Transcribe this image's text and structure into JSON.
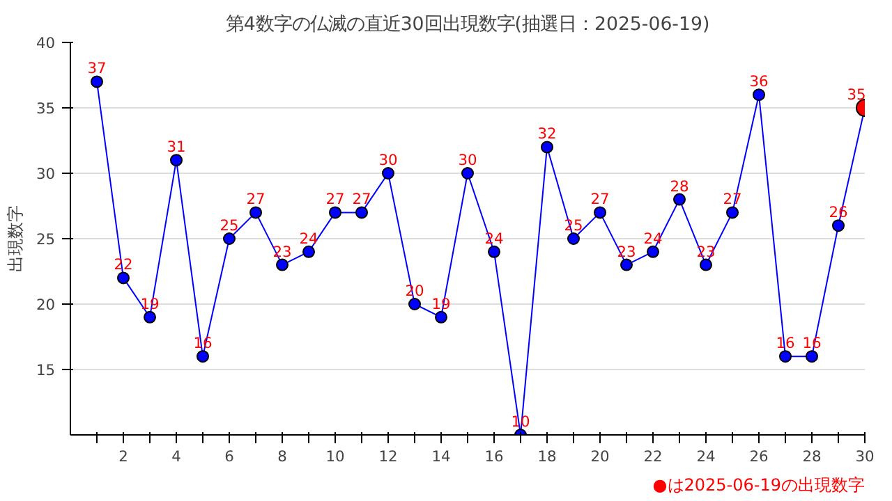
{
  "chart_data": {
    "type": "line",
    "title": "第4数字の仏滅の直近30回出現数字(抽選日：2025-06-19)",
    "ylabel": "出現数字",
    "x": [
      1,
      2,
      3,
      4,
      5,
      6,
      7,
      8,
      9,
      10,
      11,
      12,
      13,
      14,
      15,
      16,
      17,
      18,
      19,
      20,
      21,
      22,
      23,
      24,
      25,
      26,
      27,
      28,
      29,
      30
    ],
    "series": [
      {
        "color": "#0000ff",
        "values": [
          37,
          22,
          19,
          31,
          16,
          25,
          27,
          23,
          24,
          27,
          27,
          30,
          20,
          19,
          30,
          24,
          10,
          32,
          25,
          27,
          23,
          24,
          28,
          23,
          27,
          36,
          16,
          16,
          26,
          35
        ],
        "colors": [
          "#0000ff",
          "#0000ff",
          "#0000ff",
          "#0000ff",
          "#0000ff",
          "#0000ff",
          "#0000ff",
          "#0000ff",
          "#0000ff",
          "#0000ff",
          "#0000ff",
          "#0000ff",
          "#0000ff",
          "#0000ff",
          "#0000ff",
          "#0000ff",
          "#0000ff",
          "#0000ff",
          "#0000ff",
          "#0000ff",
          "#0000ff",
          "#0000ff",
          "#0000ff",
          "#0000ff",
          "#0000ff",
          "#0000ff",
          "#0000ff",
          "#0000ff",
          "#0000ff",
          "#ff0000"
        ]
      }
    ],
    "xlim": [
      0,
      30
    ],
    "xticks": [
      {
        "value": 1,
        "label": null
      },
      2,
      {
        "value": 3,
        "label": null
      },
      4,
      {
        "value": 5,
        "label": null
      },
      6,
      {
        "value": 7,
        "label": null
      },
      8,
      {
        "value": 9,
        "label": null
      },
      10,
      {
        "value": 11,
        "label": null
      },
      12,
      {
        "value": 13,
        "label": null
      },
      14,
      {
        "value": 15,
        "label": null
      },
      16,
      {
        "value": 17,
        "label": null
      },
      18,
      {
        "value": 19,
        "label": null
      },
      20,
      {
        "value": 21,
        "label": null
      },
      22,
      {
        "value": 23,
        "label": null
      },
      24,
      {
        "value": 25,
        "label": null
      },
      26,
      {
        "value": 27,
        "label": null
      },
      28,
      {
        "value": 29,
        "label": null
      },
      30
    ],
    "ylim": [
      10,
      40
    ],
    "yticks": [
      15,
      20,
      25,
      30,
      35,
      40
    ],
    "grid": "y",
    "marker": "circle",
    "line_style": "solid",
    "data_labels": true,
    "annotations": [
      "●は2025-06-19の出現数字"
    ]
  }
}
